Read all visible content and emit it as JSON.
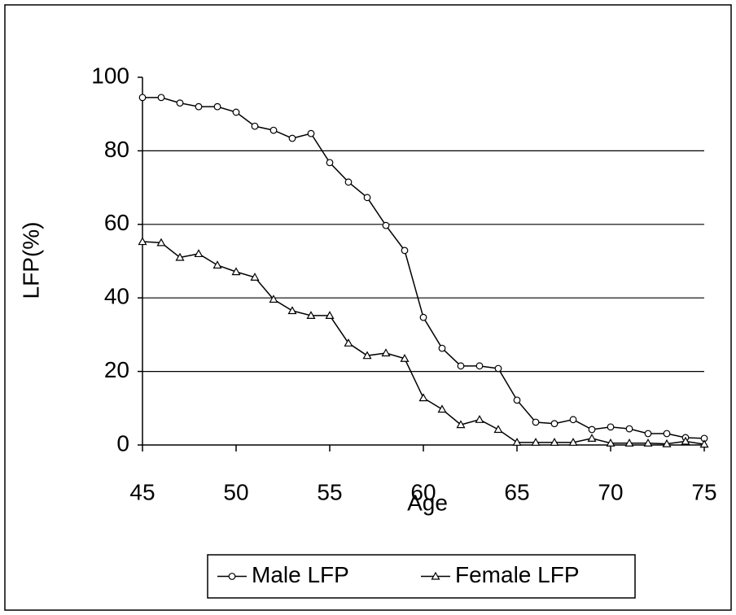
{
  "chart_data": {
    "type": "line",
    "x_label": "Age",
    "y_label": "LFP(%)",
    "x": [
      45,
      46,
      47,
      48,
      49,
      50,
      51,
      52,
      53,
      54,
      55,
      56,
      57,
      58,
      59,
      60,
      61,
      62,
      63,
      64,
      65,
      66,
      67,
      68,
      69,
      70,
      71,
      72,
      73,
      74,
      75
    ],
    "series": [
      {
        "name": "Male LFP",
        "color": "#000000",
        "marker": "circle",
        "values": [
          94.5,
          94.5,
          93,
          92,
          92,
          90.5,
          86.7,
          85.6,
          83.4,
          84.7,
          76.8,
          71.5,
          67.3,
          59.7,
          52.9,
          34.7,
          26.3,
          21.5,
          21.5,
          20.8,
          12.2,
          6.2,
          5.8,
          6.9,
          4.2,
          4.9,
          4.4,
          3.1,
          3.1,
          2,
          1.8
        ]
      },
      {
        "name": "Female LFP",
        "color": "#000000",
        "marker": "triangle",
        "values": [
          55.3,
          55,
          51,
          52,
          48.9,
          47.1,
          45.6,
          39.6,
          36.5,
          35.2,
          35.2,
          27.7,
          24.3,
          25,
          23.5,
          12.8,
          9.7,
          5.5,
          6.9,
          4.2,
          0.7,
          0.7,
          0.7,
          0.7,
          1.8,
          0.5,
          0.5,
          0.5,
          0.3,
          1,
          0.2
        ]
      }
    ],
    "xlim": [
      45,
      75
    ],
    "ylim": [
      0,
      100
    ],
    "xticks": [
      45,
      50,
      55,
      60,
      65,
      70,
      75
    ],
    "yticks": [
      0,
      20,
      40,
      60,
      80,
      100
    ],
    "grid": true,
    "legend": "bottom"
  }
}
